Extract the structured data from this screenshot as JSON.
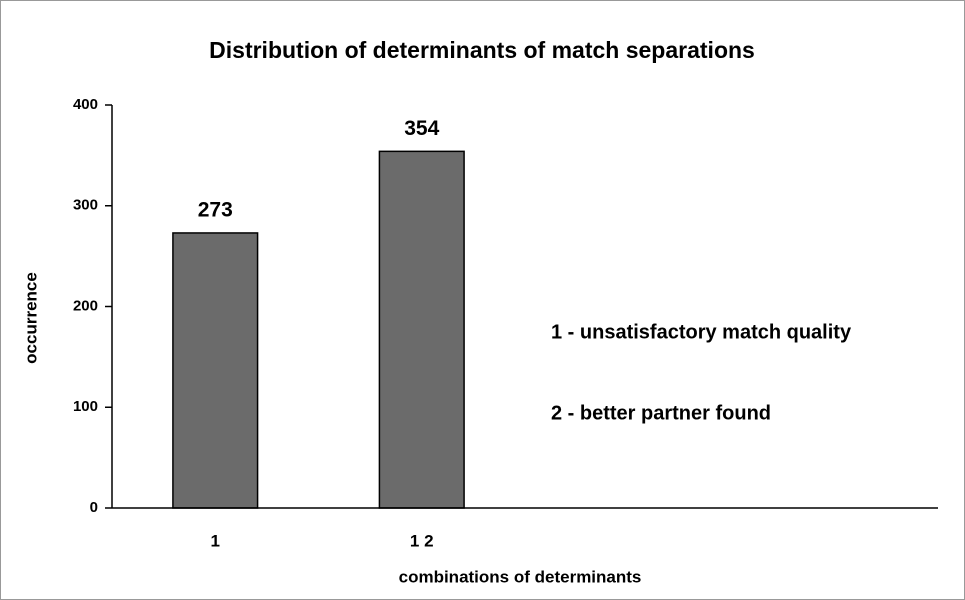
{
  "chart_data": {
    "type": "bar",
    "title": "Distribution of determinants of match separations",
    "x_label": "combinations of determinants",
    "y_label": "occurrence",
    "categories": [
      "1",
      "1 2",
      null,
      null
    ],
    "values": [
      273,
      354,
      null,
      null
    ],
    "value_labels": [
      "273",
      "354",
      null,
      null
    ],
    "color": "#6b6b6b",
    "ylim": [
      0,
      400
    ],
    "yticks": [
      0,
      100,
      200,
      300,
      400
    ],
    "grid": false,
    "annotations": [
      "1 - unsatisfactory match quality",
      "2 - better partner found"
    ]
  }
}
